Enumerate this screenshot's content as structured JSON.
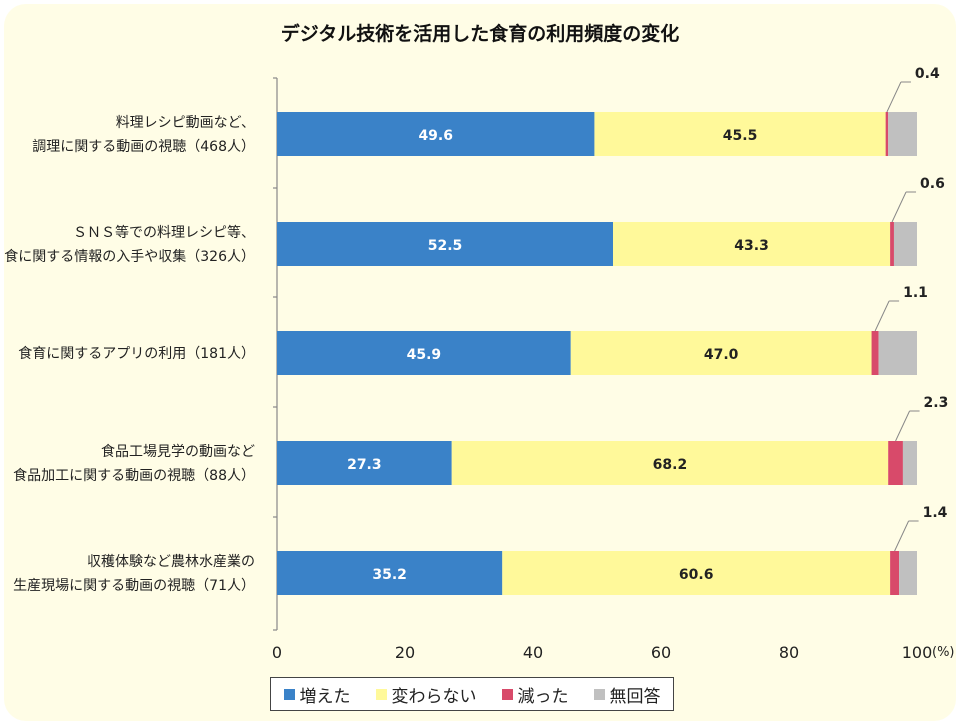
{
  "chart_data": {
    "type": "bar",
    "orientation": "horizontal",
    "stacked": true,
    "title": "デジタル技術を活用した食育の利用頻度の変化",
    "categories": [
      [
        "料理レシピ動画など、",
        "調理に関する動画の視聴（468人）"
      ],
      [
        "ＳＮＳ等での料理レシピ等、",
        "食に関する情報の入手や収集（326人）"
      ],
      [
        "食育に関するアプリの利用（181人）"
      ],
      [
        "食品工場見学の動画など",
        "食品加工に関する動画の視聴（88人）"
      ],
      [
        "収穫体験など農林水産業の",
        "生産現場に関する動画の視聴（71人）"
      ]
    ],
    "series": [
      {
        "name": "増えた",
        "color": "#3a82c8",
        "values": [
          49.6,
          52.5,
          45.9,
          27.3,
          35.2
        ]
      },
      {
        "name": "変わらない",
        "color": "#fff99a",
        "values": [
          45.5,
          43.3,
          47.0,
          68.2,
          60.6
        ]
      },
      {
        "name": "減った",
        "color": "#d84a6a",
        "values": [
          0.4,
          0.6,
          1.1,
          2.3,
          1.4
        ]
      },
      {
        "name": "無回答",
        "color": "#c0c0c0",
        "values": [
          4.5,
          3.6,
          6.0,
          2.2,
          2.8
        ]
      }
    ],
    "data_labels": {
      "増えた": [
        "49.6",
        "52.5",
        "45.9",
        "27.3",
        "35.2"
      ],
      "変わらない": [
        "45.5",
        "43.3",
        "47.0",
        "68.2",
        "60.6"
      ],
      "減った": [
        "0.4",
        "0.6",
        "1.1",
        "2.3",
        "1.4"
      ]
    },
    "xlim": [
      0,
      100
    ],
    "xticks": [
      "0",
      "20",
      "40",
      "60",
      "80",
      "100"
    ],
    "x_unit": "(%)",
    "legend_position": "bottom",
    "grid": false
  }
}
